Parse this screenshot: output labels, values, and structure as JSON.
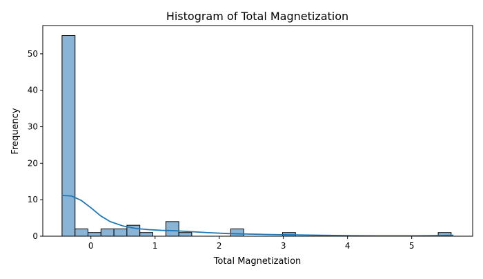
{
  "chart_data": {
    "type": "bar",
    "title": "Histogram of Total Magnetization",
    "xlabel": "Total Magnetization",
    "ylabel": "Frequency",
    "xlim": [
      -0.75,
      5.95
    ],
    "ylim": [
      0,
      57.75
    ],
    "x_ticks": [
      0,
      1,
      2,
      3,
      4,
      5
    ],
    "y_ticks": [
      0,
      10,
      20,
      30,
      40,
      50
    ],
    "bin_edges": [
      -0.45,
      -0.247,
      -0.045,
      0.157,
      0.359,
      0.561,
      0.763,
      0.965,
      1.168,
      1.37,
      1.572,
      1.774,
      1.976,
      2.178,
      2.381,
      2.583,
      2.785,
      2.987,
      3.189,
      3.391,
      3.594,
      3.796,
      3.998,
      4.2,
      4.402,
      4.604,
      4.807,
      5.009,
      5.211,
      5.413,
      5.615
    ],
    "counts": [
      55,
      2,
      1,
      2,
      2,
      3,
      1,
      0,
      4,
      1,
      0,
      0,
      0,
      2,
      0,
      0,
      0,
      1,
      0,
      0,
      0,
      0,
      0,
      0,
      0,
      0,
      0,
      0,
      0,
      1
    ],
    "kde": {
      "x": [
        -0.45,
        -0.3,
        -0.15,
        0,
        0.15,
        0.3,
        0.5,
        0.7,
        0.9,
        1.1,
        1.3,
        1.5,
        1.8,
        2.1,
        2.4,
        2.8,
        3.2,
        3.6,
        4.0,
        4.5,
        5.0,
        5.4,
        5.65
      ],
      "y": [
        11.2,
        11.0,
        9.8,
        7.8,
        5.6,
        4.0,
        2.8,
        2.1,
        1.8,
        1.6,
        1.5,
        1.3,
        1.0,
        0.75,
        0.6,
        0.45,
        0.35,
        0.25,
        0.15,
        0.1,
        0.1,
        0.15,
        0.25
      ]
    },
    "colors": {
      "bar_fill": "#8ab4d6",
      "bar_edge": "#000000",
      "kde_line": "#1f77b4",
      "axes": "#000000"
    },
    "grid": false,
    "legend": "none"
  }
}
